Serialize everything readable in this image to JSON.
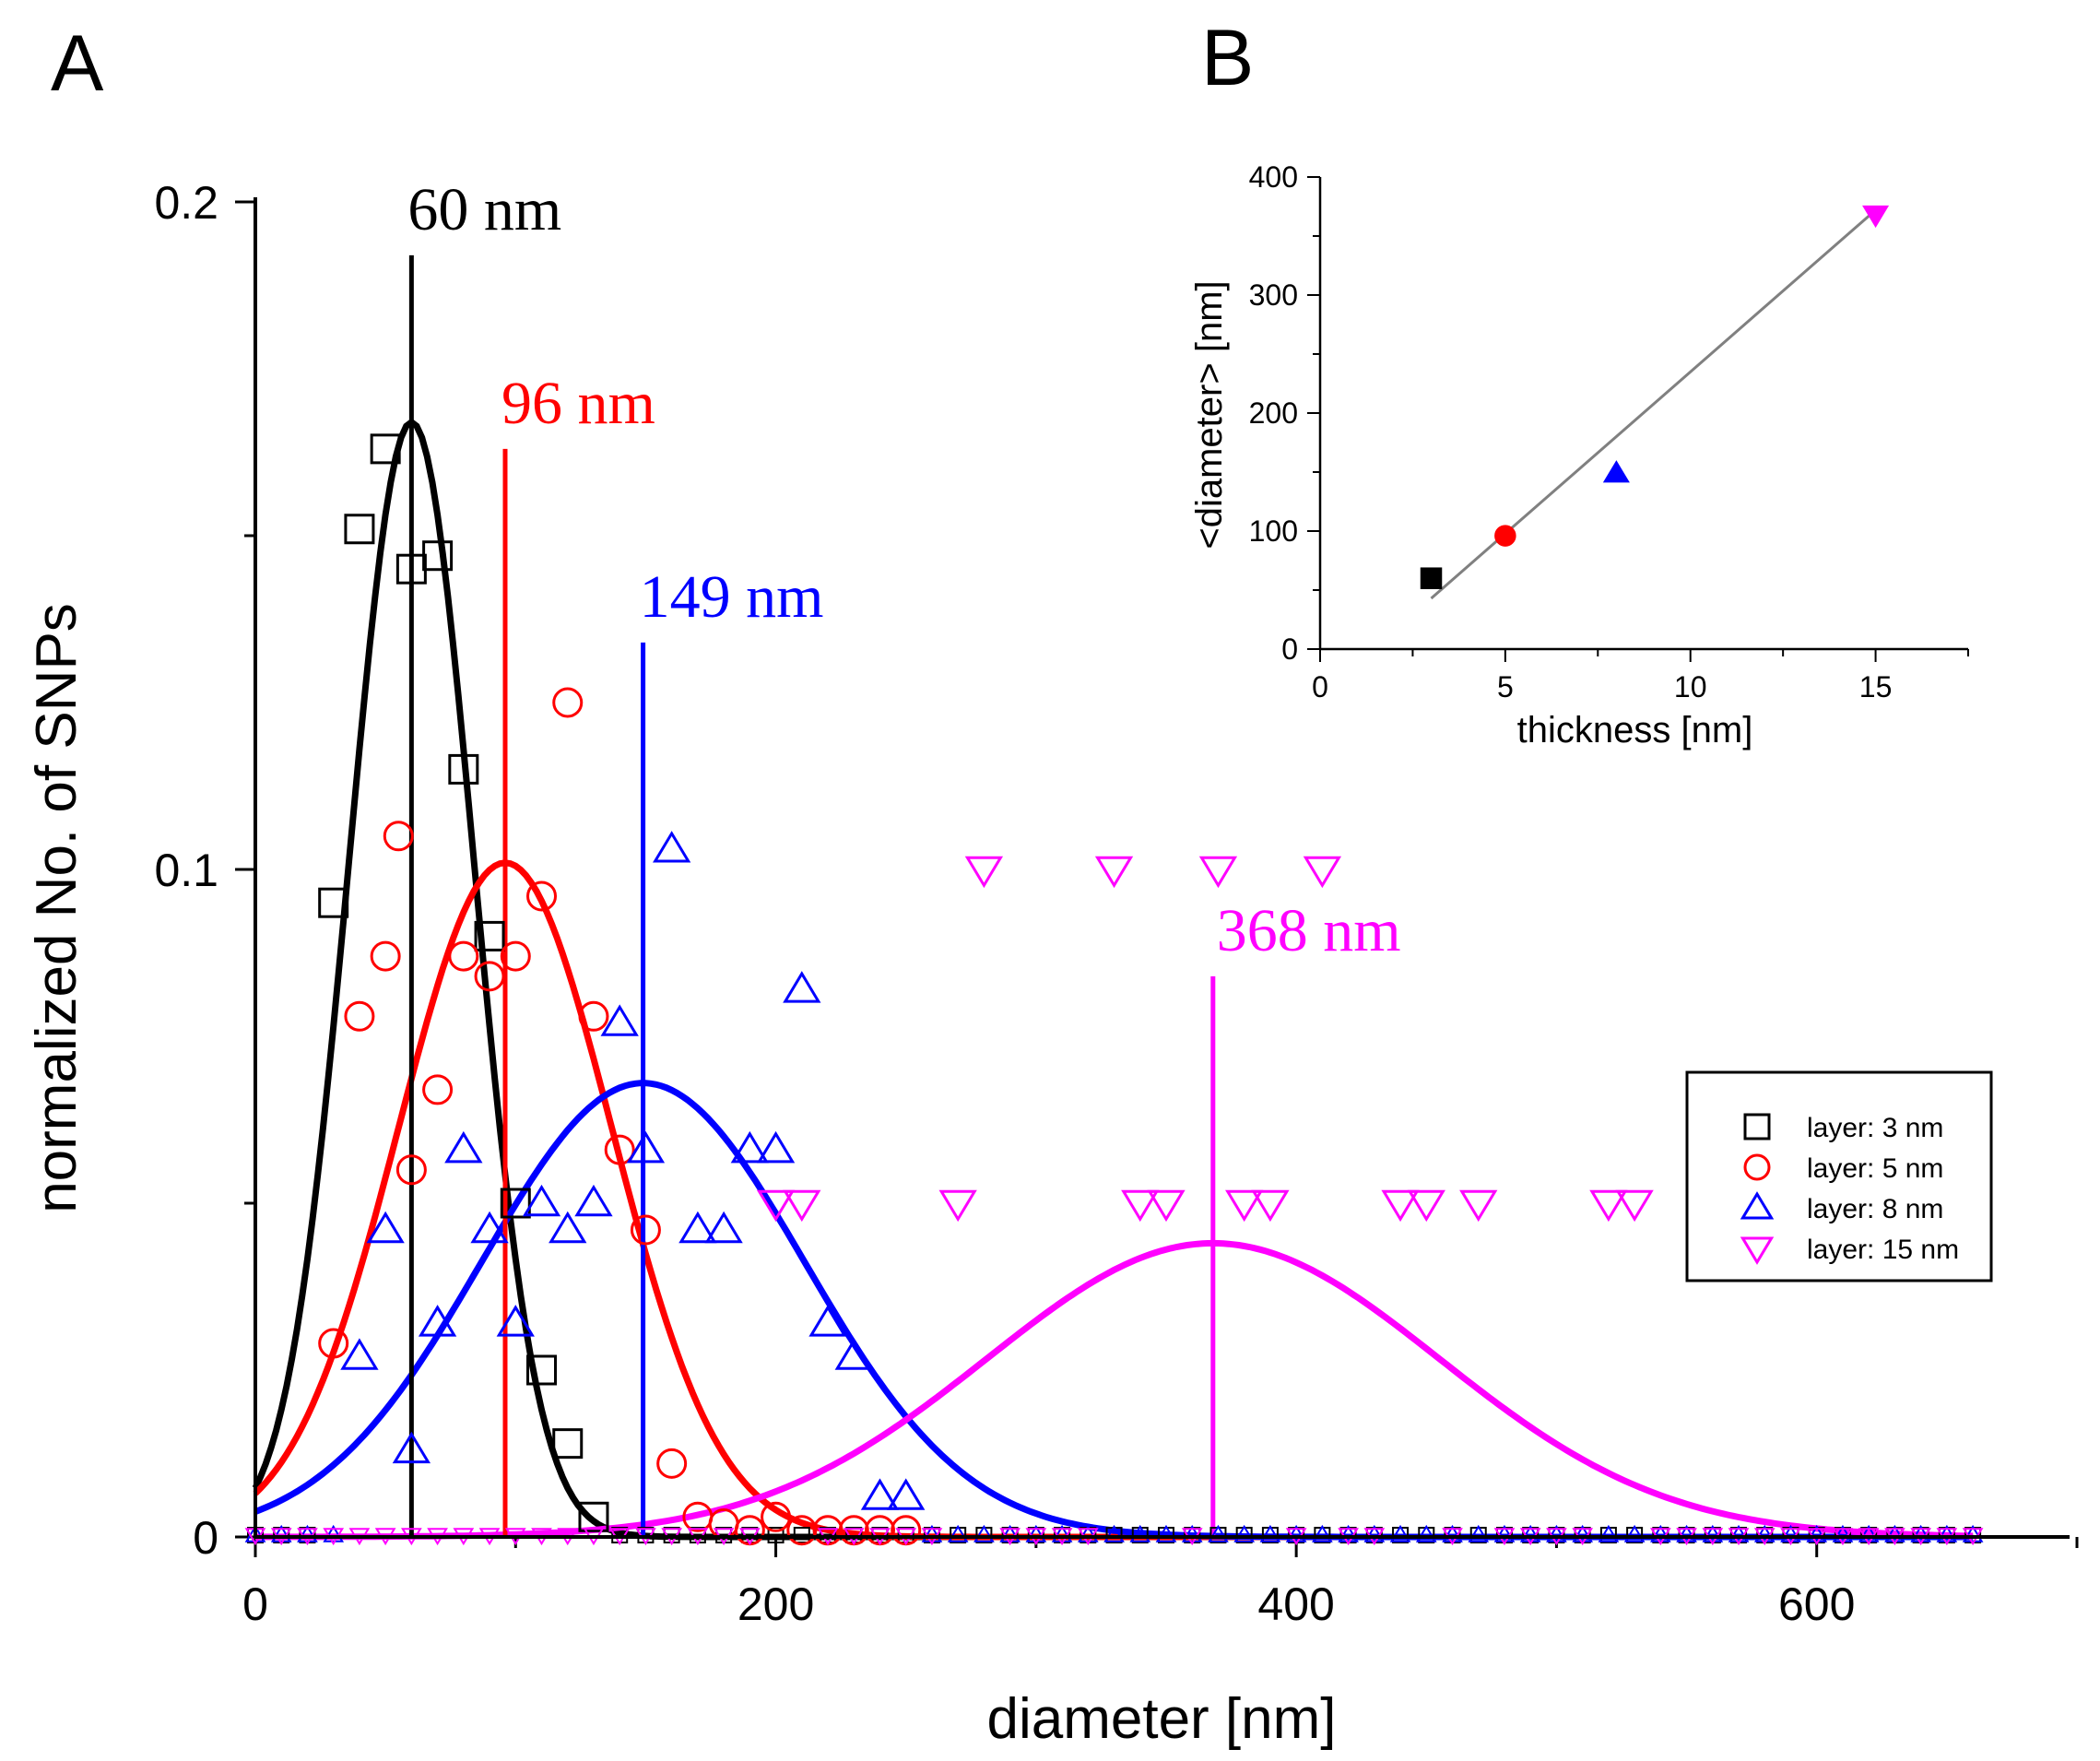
{
  "panel_labels": {
    "a": "A",
    "b": "B"
  },
  "chart_data": [
    {
      "type": "scatter",
      "panel": "A",
      "title": "",
      "xlabel": "diameter [nm]",
      "ylabel": "normalized No. of SNPs",
      "xlim": [
        0,
        700
      ],
      "ylim": [
        0,
        0.2
      ],
      "xticks": [
        0,
        200,
        400,
        600
      ],
      "xtick_labels": [
        "0",
        "200",
        "400",
        "600"
      ],
      "yticks": [
        0,
        0.1,
        0.2
      ],
      "ytick_labels": [
        "0",
        "0.1",
        "0.2"
      ],
      "legend_position": "right",
      "series": [
        {
          "name": "layer: 3 nm",
          "color": "#000000",
          "marker": "square",
          "x": [
            0,
            10,
            20,
            30,
            40,
            50,
            60,
            70,
            80,
            90,
            100,
            110,
            120,
            130,
            140,
            150,
            160,
            170,
            180,
            190,
            200,
            210,
            220,
            230,
            240,
            250,
            260,
            270,
            280,
            290,
            300,
            310,
            320,
            330,
            340,
            350,
            360,
            370,
            380,
            390,
            400,
            410,
            420,
            430,
            440,
            450,
            460,
            470,
            480,
            490,
            500,
            510,
            520,
            530,
            540,
            550,
            560,
            570,
            580,
            590,
            600,
            610,
            620,
            630,
            640,
            650,
            660
          ],
          "y": [
            0,
            0,
            0,
            0.095,
            0.151,
            0.163,
            0.145,
            0.147,
            0.115,
            0.09,
            0.05,
            0.025,
            0.014,
            0.003,
            0,
            0,
            0,
            0,
            0,
            0,
            0,
            0,
            0,
            0,
            0,
            0,
            0,
            0,
            0,
            0,
            0,
            0,
            0,
            0,
            0,
            0,
            0,
            0,
            0,
            0,
            0,
            0,
            0,
            0,
            0,
            0,
            0,
            0,
            0,
            0,
            0,
            0,
            0,
            0,
            0,
            0,
            0,
            0,
            0,
            0,
            0,
            0,
            0,
            0,
            0,
            0,
            0
          ],
          "fit": {
            "mean": 60,
            "sigma": 24,
            "amplitude": 0.167
          },
          "mean_label": "60 nm",
          "mean_line_top": 0.192
        },
        {
          "name": "layer: 5 nm",
          "color": "#ff0000",
          "marker": "circle",
          "x": [
            30,
            40,
            50,
            55,
            60,
            70,
            80,
            90,
            100,
            110,
            120,
            130,
            140,
            150,
            160,
            170,
            180,
            190,
            200,
            210,
            220,
            230,
            240,
            250
          ],
          "y": [
            0.029,
            0.078,
            0.087,
            0.105,
            0.055,
            0.067,
            0.087,
            0.084,
            0.087,
            0.096,
            0.125,
            0.078,
            0.058,
            0.046,
            0.011,
            0.003,
            0.002,
            0.001,
            0.003,
            0.001,
            0.001,
            0.001,
            0.001,
            0.001
          ],
          "fit": {
            "mean": 96,
            "sigma": 41,
            "amplitude": 0.101
          },
          "mean_label": "96 nm",
          "mean_line_top": 0.163
        },
        {
          "name": "layer: 8 nm",
          "color": "#0000ff",
          "marker": "triangle-up",
          "x": [
            0,
            10,
            20,
            30,
            40,
            50,
            60,
            70,
            80,
            90,
            100,
            110,
            120,
            130,
            140,
            150,
            160,
            170,
            180,
            190,
            200,
            210,
            220,
            230,
            240,
            250,
            260,
            270,
            280,
            290,
            300,
            310,
            320,
            330,
            340,
            350,
            360,
            370,
            380,
            390,
            400,
            410,
            420,
            430,
            440,
            450,
            460,
            470,
            480,
            490,
            500,
            510,
            520,
            530,
            540,
            550,
            560,
            570,
            580,
            590,
            600,
            610,
            620,
            630,
            640,
            650,
            660
          ],
          "y": [
            0,
            0,
            0,
            0,
            0.027,
            0.046,
            0.013,
            0.032,
            0.058,
            0.046,
            0.032,
            0.05,
            0.046,
            0.05,
            0.077,
            0.058,
            0.103,
            0.046,
            0.046,
            0.058,
            0.058,
            0.082,
            0.032,
            0.027,
            0.006,
            0.006,
            0,
            0,
            0,
            0,
            0,
            0,
            0,
            0,
            0,
            0,
            0,
            0,
            0,
            0,
            0,
            0,
            0,
            0,
            0,
            0,
            0,
            0,
            0,
            0,
            0,
            0,
            0,
            0,
            0,
            0,
            0,
            0,
            0,
            0,
            0,
            0,
            0,
            0,
            0,
            0,
            0
          ],
          "fit": {
            "mean": 149,
            "sigma": 62,
            "amplitude": 0.068
          },
          "mean_label": "149 nm",
          "mean_line_top": 0.134
        },
        {
          "name": "layer: 15 nm",
          "color": "#ff00ff",
          "marker": "triangle-down",
          "x": [
            200,
            210,
            270,
            280,
            330,
            340,
            350,
            370,
            380,
            390,
            410,
            440,
            450,
            470,
            520,
            530
          ],
          "y": [
            0.05,
            0.05,
            0.05,
            0.1,
            0.1,
            0.05,
            0.05,
            0.1,
            0.05,
            0.05,
            0.1,
            0.05,
            0.05,
            0.05,
            0.05,
            0.05
          ],
          "baseline_x": [
            0,
            10,
            20,
            30,
            40,
            50,
            60,
            70,
            80,
            90,
            100,
            110,
            120,
            130,
            140,
            150,
            160,
            170,
            180,
            190,
            220,
            230,
            240,
            250,
            260,
            290,
            300,
            310,
            320,
            360,
            400,
            420,
            430,
            460,
            480,
            490,
            500,
            510,
            540,
            550,
            560,
            570,
            580,
            590,
            600,
            610,
            620,
            630,
            640,
            650,
            660
          ],
          "fit": {
            "mean": 368,
            "sigma": 87,
            "amplitude": 0.044
          },
          "mean_label": "368 nm",
          "mean_line_top": 0.084
        }
      ]
    },
    {
      "type": "scatter",
      "panel": "B",
      "title": "",
      "xlabel": "thickness [nm]",
      "ylabel": "<diameter> [nm]",
      "xlim": [
        0,
        17.5
      ],
      "ylim": [
        0,
        400
      ],
      "xticks": [
        0,
        5,
        10,
        15
      ],
      "xtick_labels": [
        "0",
        "5",
        "10",
        "15"
      ],
      "yticks": [
        0,
        100,
        200,
        300,
        400
      ],
      "ytick_labels": [
        "0",
        "100",
        "200",
        "300",
        "400"
      ],
      "points": [
        {
          "x": 3,
          "y": 60,
          "color": "#000000",
          "marker": "square"
        },
        {
          "x": 5,
          "y": 96,
          "color": "#ff0000",
          "marker": "circle"
        },
        {
          "x": 8,
          "y": 149,
          "color": "#0000ff",
          "marker": "triangle-up"
        },
        {
          "x": 15,
          "y": 368,
          "color": "#ff00ff",
          "marker": "triangle-down"
        }
      ],
      "fit_line": {
        "x": [
          3,
          15
        ],
        "y": [
          43,
          372
        ],
        "color": "#808080"
      }
    }
  ]
}
